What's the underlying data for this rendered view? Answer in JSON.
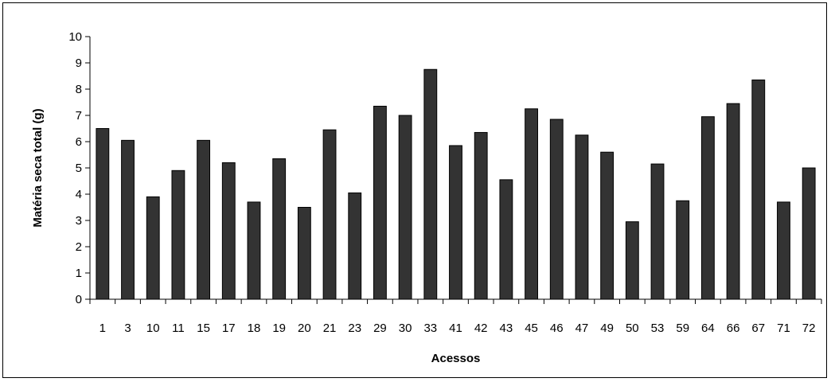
{
  "chart_data": {
    "type": "bar",
    "title": "",
    "xlabel": "Acessos",
    "ylabel": "Matéria seca total (g)",
    "ylim": [
      0,
      10
    ],
    "yticks": [
      0,
      1,
      2,
      3,
      4,
      5,
      6,
      7,
      8,
      9,
      10
    ],
    "grid": false,
    "legend": "none",
    "bar_color": "#333333",
    "categories": [
      "1",
      "3",
      "10",
      "11",
      "15",
      "17",
      "18",
      "19",
      "20",
      "21",
      "23",
      "29",
      "30",
      "33",
      "41",
      "42",
      "43",
      "45",
      "46",
      "47",
      "49",
      "50",
      "53",
      "59",
      "64",
      "66",
      "67",
      "71",
      "72"
    ],
    "values": [
      6.5,
      6.05,
      3.9,
      4.9,
      6.05,
      5.2,
      3.7,
      5.35,
      3.5,
      6.45,
      4.05,
      7.35,
      7.0,
      8.75,
      5.85,
      6.35,
      4.55,
      7.25,
      6.85,
      6.25,
      5.6,
      2.95,
      5.15,
      3.75,
      6.95,
      7.45,
      8.35,
      3.7,
      5.0
    ]
  }
}
